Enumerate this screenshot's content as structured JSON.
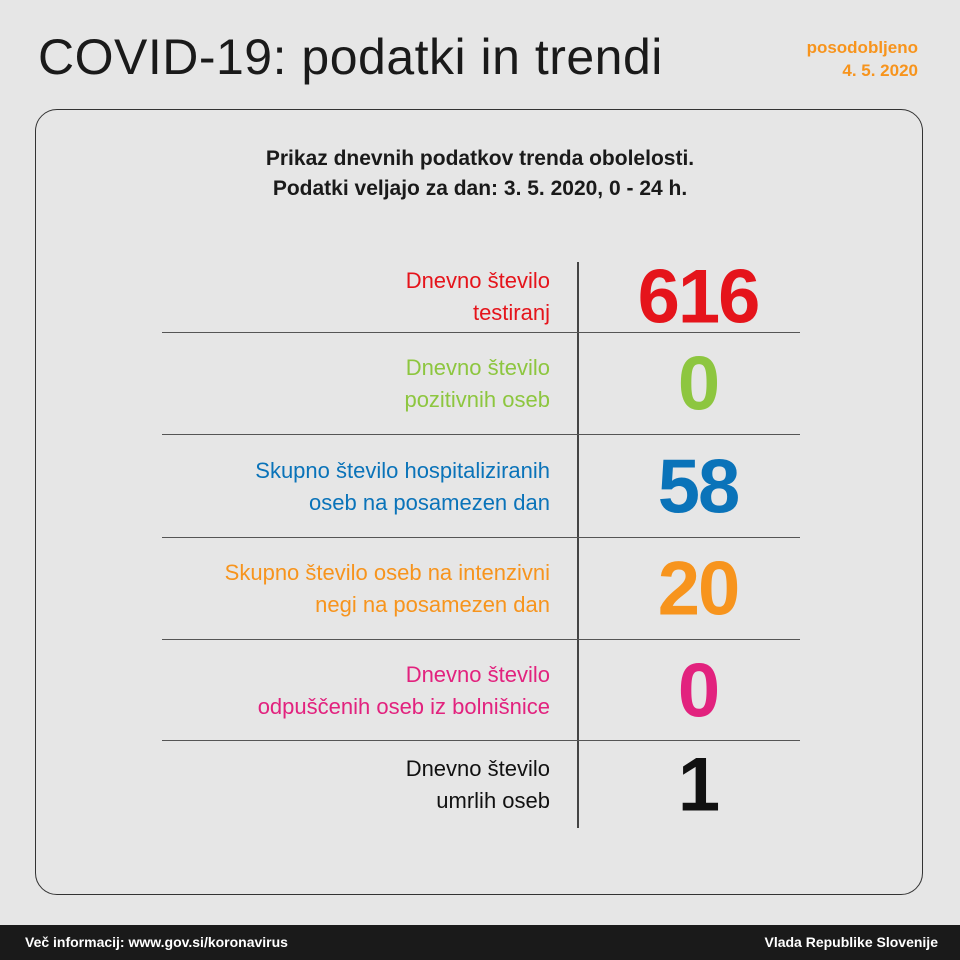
{
  "header": {
    "title": "COVID-19: podatki in trendi",
    "updated_label": "posodobljeno",
    "updated_date": "4. 5. 2020"
  },
  "subtitle": {
    "line1": "Prikaz dnevnih podatkov trenda obolelosti.",
    "line2": "Podatki veljajo za dan: 3. 5. 2020, 0 - 24 h."
  },
  "rows": [
    {
      "label1": "Dnevno število",
      "label2": "testiranj",
      "value": "616",
      "color": "#e5141b"
    },
    {
      "label1": "Dnevno število",
      "label2": "pozitivnih oseb",
      "value": "0",
      "color": "#8dc63f"
    },
    {
      "label1": "Skupno število hospitaliziranih",
      "label2": "oseb na posamezen dan",
      "value": "58",
      "color": "#0a73b9"
    },
    {
      "label1": "Skupno število oseb na intenzivni",
      "label2": "negi na posamezen dan",
      "value": "20",
      "color": "#f7941d"
    },
    {
      "label1": "Dnevno število",
      "label2": "odpuščenih oseb iz bolnišnice",
      "value": "0",
      "color": "#e2227e"
    },
    {
      "label1": "Dnevno število",
      "label2": "umrlih oseb",
      "value": "1",
      "color": "#111111"
    }
  ],
  "footer": {
    "left": "Več informacij: www.gov.si/koronavirus",
    "right": "Vlada Republike Slovenije"
  }
}
